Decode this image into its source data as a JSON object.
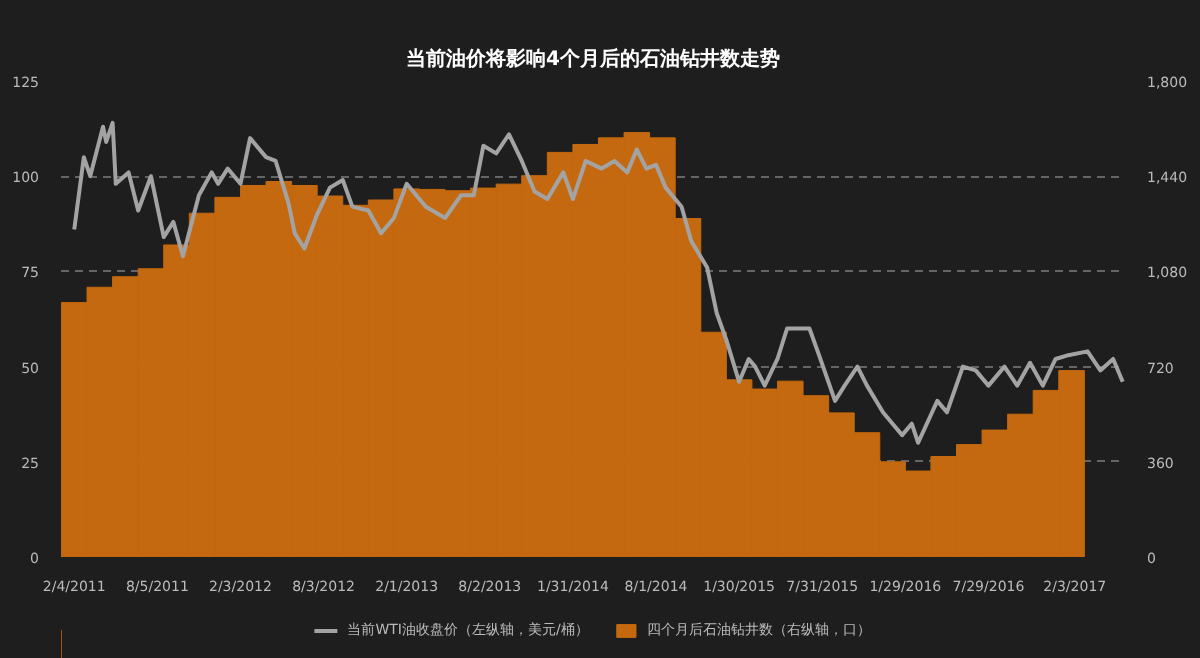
{
  "chart_data": {
    "type": "line",
    "title": "当前油价将影响4个月后的石油钻井数走势",
    "xlim": [
      "2011-01-06",
      "2017-05-24"
    ],
    "xticks": [
      {
        "value": "2011-02-04",
        "label": "2/4/2011"
      },
      {
        "value": "2011-08-05",
        "label": "8/5/2011"
      },
      {
        "value": "2012-02-03",
        "label": "2/3/2012"
      },
      {
        "value": "2012-08-03",
        "label": "8/3/2012"
      },
      {
        "value": "2013-02-01",
        "label": "2/1/2013"
      },
      {
        "value": "2013-08-02",
        "label": "8/2/2013"
      },
      {
        "value": "2014-01-31",
        "label": "1/31/2014"
      },
      {
        "value": "2014-08-01",
        "label": "8/1/2014"
      },
      {
        "value": "2015-01-30",
        "label": "1/30/2015"
      },
      {
        "value": "2015-07-31",
        "label": "7/31/2015"
      },
      {
        "value": "2016-01-29",
        "label": "1/29/2016"
      },
      {
        "value": "2016-07-29",
        "label": "7/29/2016"
      },
      {
        "value": "2017-02-03",
        "label": "2/3/2017"
      }
    ],
    "ylim": [
      0,
      125
    ],
    "yticks": [
      0,
      25,
      50,
      75,
      100,
      125
    ],
    "y2lim": [
      0,
      1800
    ],
    "y2ticks": [
      0,
      360,
      720,
      {
        "value": 1080,
        "label": "1,080"
      },
      {
        "value": 1440,
        "label": "1,440"
      },
      {
        "value": 1800,
        "label": "1,800"
      }
    ],
    "grid": "y",
    "legend": "bottom",
    "series": [
      {
        "name": "四个月后石油钻井数（右纵轴，口）",
        "type": "bar",
        "axis": "y2",
        "color": "#c4690f",
        "x": [
          "2011-02-04",
          "2011-04-01",
          "2011-05-27",
          "2011-07-22",
          "2011-09-16",
          "2011-11-11",
          "2012-01-06",
          "2012-03-02",
          "2012-04-27",
          "2012-06-22",
          "2012-08-17",
          "2012-10-12",
          "2012-12-07",
          "2013-02-01",
          "2013-03-29",
          "2013-05-24",
          "2013-07-19",
          "2013-09-13",
          "2013-11-08",
          "2014-01-03",
          "2014-02-28",
          "2014-04-25",
          "2014-06-20",
          "2014-08-15",
          "2014-10-10",
          "2014-12-05",
          "2015-01-30",
          "2015-03-27",
          "2015-05-22",
          "2015-07-17",
          "2015-09-11",
          "2015-11-06",
          "2016-01-01",
          "2016-02-26",
          "2016-04-22",
          "2016-06-17",
          "2016-08-12",
          "2016-10-07",
          "2016-12-02",
          "2017-01-27"
        ],
        "values": [
          962,
          1020,
          1060,
          1090,
          1180,
          1300,
          1360,
          1405,
          1420,
          1405,
          1365,
          1330,
          1350,
          1392,
          1390,
          1385,
          1395,
          1410,
          1442,
          1530,
          1560,
          1585,
          1605,
          1585,
          1280,
          850,
          670,
          635,
          665,
          610,
          545,
          470,
          360,
          325,
          380,
          425,
          480,
          540,
          630,
          705
        ]
      },
      {
        "name": "当前WTI油收盘价（左纵轴，美元/桶）",
        "color": "#a3a3a3",
        "x": [
          "2011-02-04",
          "2011-02-25",
          "2011-03-11",
          "2011-04-08",
          "2011-04-15",
          "2011-04-29",
          "2011-05-06",
          "2011-06-03",
          "2011-06-24",
          "2011-07-22",
          "2011-08-19",
          "2011-09-09",
          "2011-09-30",
          "2011-11-04",
          "2011-12-02",
          "2011-12-16",
          "2012-01-06",
          "2012-02-03",
          "2012-02-24",
          "2012-03-30",
          "2012-04-20",
          "2012-05-18",
          "2012-06-01",
          "2012-06-22",
          "2012-07-20",
          "2012-08-17",
          "2012-09-14",
          "2012-10-05",
          "2012-11-09",
          "2012-12-07",
          "2013-01-04",
          "2013-02-01",
          "2013-03-15",
          "2013-04-26",
          "2013-05-31",
          "2013-06-28",
          "2013-07-19",
          "2013-08-16",
          "2013-09-13",
          "2013-10-11",
          "2013-11-08",
          "2013-12-06",
          "2014-01-10",
          "2014-01-31",
          "2014-02-28",
          "2014-04-04",
          "2014-05-02",
          "2014-05-30",
          "2014-06-20",
          "2014-07-11",
          "2014-08-01",
          "2014-08-22",
          "2014-09-26",
          "2014-10-17",
          "2014-11-21",
          "2014-12-12",
          "2015-01-02",
          "2015-01-30",
          "2015-02-20",
          "2015-03-06",
          "2015-03-27",
          "2015-04-24",
          "2015-05-15",
          "2015-07-03",
          "2015-07-24",
          "2015-08-28",
          "2015-09-18",
          "2015-10-16",
          "2015-11-06",
          "2015-12-11",
          "2016-01-01",
          "2016-01-22",
          "2016-02-12",
          "2016-02-26",
          "2016-04-08",
          "2016-04-29",
          "2016-06-03",
          "2016-07-01",
          "2016-07-29",
          "2016-09-02",
          "2016-09-30",
          "2016-10-28",
          "2016-11-25",
          "2016-12-23",
          "2017-01-20",
          "2017-03-03",
          "2017-03-31",
          "2017-04-28",
          "2017-05-19"
        ],
        "values": [
          86,
          105,
          100,
          113,
          109,
          114,
          98,
          101,
          91,
          100,
          84,
          88,
          79,
          95,
          101,
          98,
          102,
          98,
          110,
          105,
          104,
          93,
          85,
          81,
          90,
          97,
          99,
          92,
          91,
          85,
          89,
          98,
          92,
          89,
          95,
          95,
          108,
          106,
          111,
          104,
          96,
          94,
          101,
          94,
          104,
          102,
          104,
          101,
          107,
          102,
          103,
          97,
          92,
          83,
          76,
          64,
          57,
          46,
          52,
          50,
          45,
          52,
          60,
          60,
          53,
          41,
          45,
          50,
          45,
          38,
          35,
          32,
          35,
          30,
          41,
          38,
          50,
          49,
          45,
          50,
          45,
          51,
          45,
          52,
          53,
          54,
          49,
          52,
          46
        ]
      }
    ]
  }
}
